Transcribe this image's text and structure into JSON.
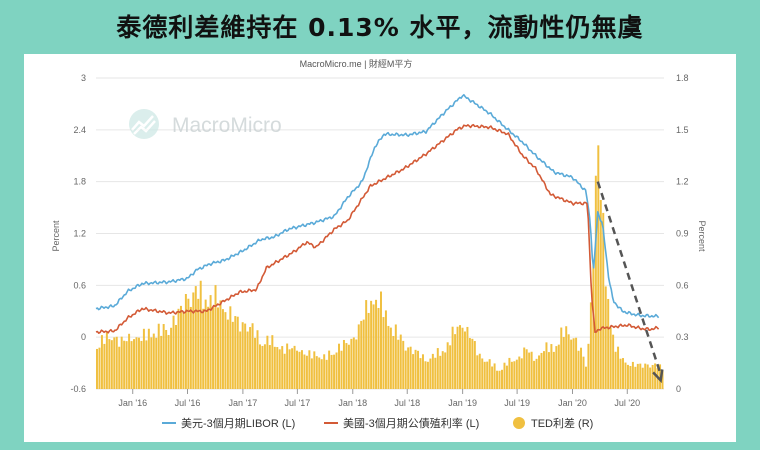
{
  "banner": {
    "title": "泰德利差維持在 0.13% 水平，流動性仍無虞"
  },
  "source": "MacroMicro.me | 財經M平方",
  "watermark": "MacroMicro",
  "colors": {
    "libor": "#5aaad8",
    "treasury": "#d35a36",
    "ted": "#f0c040",
    "arrow": "#555555",
    "background": "#7fd3c1"
  },
  "icons": [
    "macromicro-logo-icon",
    "dashed-arrow-icon"
  ],
  "chart_data": {
    "type": "line",
    "x_range": [
      "2015-09-01",
      "2020-10-31"
    ],
    "x_ticks": [
      {
        "label": "Jan '16",
        "date": "2016-01-01"
      },
      {
        "label": "Jul '16",
        "date": "2016-07-01"
      },
      {
        "label": "Jan '17",
        "date": "2017-01-01"
      },
      {
        "label": "Jul '17",
        "date": "2017-07-01"
      },
      {
        "label": "Jan '18",
        "date": "2018-01-01"
      },
      {
        "label": "Jul '18",
        "date": "2018-07-01"
      },
      {
        "label": "Jan '19",
        "date": "2019-01-01"
      },
      {
        "label": "Jul '19",
        "date": "2019-07-01"
      },
      {
        "label": "Jan '20",
        "date": "2020-01-01"
      },
      {
        "label": "Jul '20",
        "date": "2020-07-01"
      }
    ],
    "y_left": {
      "label": "Percent",
      "range": [
        -0.6,
        3
      ],
      "ticks": [
        "-0.6",
        "0",
        "0.6",
        "1.2",
        "1.8",
        "2.4",
        "3"
      ]
    },
    "y_right": {
      "label": "Percent",
      "range": [
        0,
        1.8
      ],
      "ticks": [
        "0",
        "0.3",
        "0.6",
        "0.9",
        "1.2",
        "1.5",
        "1.8"
      ]
    },
    "grid": "horizontal",
    "legend_position": "bottom",
    "series": [
      {
        "name": "美元-3個月期LIBOR (L)",
        "axis": "left",
        "type": "line",
        "points": [
          [
            "2015-09-01",
            0.33
          ],
          [
            "2015-11-01",
            0.36
          ],
          [
            "2015-12-15",
            0.53
          ],
          [
            "2016-02-01",
            0.62
          ],
          [
            "2016-05-01",
            0.64
          ],
          [
            "2016-07-01",
            0.68
          ],
          [
            "2016-08-01",
            0.78
          ],
          [
            "2016-09-15",
            0.85
          ],
          [
            "2016-11-01",
            0.89
          ],
          [
            "2017-01-01",
            1.0
          ],
          [
            "2017-03-01",
            1.13
          ],
          [
            "2017-04-15",
            1.16
          ],
          [
            "2017-06-01",
            1.25
          ],
          [
            "2017-09-01",
            1.33
          ],
          [
            "2017-11-01",
            1.4
          ],
          [
            "2017-12-15",
            1.62
          ],
          [
            "2018-02-01",
            1.8
          ],
          [
            "2018-03-15",
            2.2
          ],
          [
            "2018-04-15",
            2.35
          ],
          [
            "2018-07-01",
            2.34
          ],
          [
            "2018-09-01",
            2.38
          ],
          [
            "2018-11-01",
            2.6
          ],
          [
            "2019-01-01",
            2.8
          ],
          [
            "2019-02-01",
            2.73
          ],
          [
            "2019-04-01",
            2.59
          ],
          [
            "2019-06-01",
            2.4
          ],
          [
            "2019-07-15",
            2.27
          ],
          [
            "2019-09-01",
            2.1
          ],
          [
            "2019-11-01",
            1.91
          ],
          [
            "2020-01-01",
            1.85
          ],
          [
            "2020-02-15",
            1.69
          ],
          [
            "2020-03-01",
            1.3
          ],
          [
            "2020-03-10",
            0.72
          ],
          [
            "2020-03-25",
            1.45
          ],
          [
            "2020-04-10",
            1.3
          ],
          [
            "2020-04-30",
            0.7
          ],
          [
            "2020-05-15",
            0.42
          ],
          [
            "2020-06-15",
            0.3
          ],
          [
            "2020-07-15",
            0.27
          ],
          [
            "2020-08-15",
            0.25
          ],
          [
            "2020-10-15",
            0.24
          ]
        ]
      },
      {
        "name": "美國-3個月期公債殖利率 (L)",
        "axis": "left",
        "type": "line",
        "points": [
          [
            "2015-09-01",
            0.06
          ],
          [
            "2015-11-01",
            0.07
          ],
          [
            "2015-12-15",
            0.22
          ],
          [
            "2016-02-01",
            0.33
          ],
          [
            "2016-05-01",
            0.28
          ],
          [
            "2016-07-01",
            0.3
          ],
          [
            "2016-09-01",
            0.3
          ],
          [
            "2016-11-01",
            0.42
          ],
          [
            "2016-12-20",
            0.52
          ],
          [
            "2017-02-15",
            0.55
          ],
          [
            "2017-03-20",
            0.8
          ],
          [
            "2017-06-20",
            0.99
          ],
          [
            "2017-08-01",
            1.1
          ],
          [
            "2017-09-01",
            1.04
          ],
          [
            "2017-11-01",
            1.25
          ],
          [
            "2017-12-15",
            1.35
          ],
          [
            "2018-03-01",
            1.75
          ],
          [
            "2018-06-20",
            1.95
          ],
          [
            "2018-09-01",
            2.12
          ],
          [
            "2018-12-20",
            2.42
          ],
          [
            "2019-01-15",
            2.45
          ],
          [
            "2019-04-01",
            2.43
          ],
          [
            "2019-06-01",
            2.35
          ],
          [
            "2019-07-20",
            2.1
          ],
          [
            "2019-09-01",
            1.95
          ],
          [
            "2019-10-20",
            1.65
          ],
          [
            "2020-01-01",
            1.55
          ],
          [
            "2020-02-20",
            1.55
          ],
          [
            "2020-03-05",
            0.45
          ],
          [
            "2020-03-16",
            0.05
          ],
          [
            "2020-04-01",
            0.1
          ],
          [
            "2020-05-15",
            0.12
          ],
          [
            "2020-07-01",
            0.14
          ],
          [
            "2020-08-15",
            0.1
          ],
          [
            "2020-09-15",
            0.09
          ],
          [
            "2020-10-15",
            0.11
          ]
        ]
      },
      {
        "name": "TED利差 (R)",
        "axis": "right",
        "type": "bar",
        "points": [
          [
            "2015-09-01",
            0.28
          ],
          [
            "2015-10-01",
            0.3
          ],
          [
            "2015-11-01",
            0.32
          ],
          [
            "2015-12-01",
            0.28
          ],
          [
            "2016-01-01",
            0.32
          ],
          [
            "2016-02-01",
            0.3
          ],
          [
            "2016-03-01",
            0.36
          ],
          [
            "2016-04-01",
            0.34
          ],
          [
            "2016-05-01",
            0.38
          ],
          [
            "2016-06-01",
            0.44
          ],
          [
            "2016-07-01",
            0.56
          ],
          [
            "2016-08-01",
            0.58
          ],
          [
            "2016-09-01",
            0.56
          ],
          [
            "2016-10-01",
            0.54
          ],
          [
            "2016-11-01",
            0.5
          ],
          [
            "2016-12-01",
            0.42
          ],
          [
            "2017-01-01",
            0.4
          ],
          [
            "2017-02-01",
            0.36
          ],
          [
            "2017-03-01",
            0.3
          ],
          [
            "2017-04-01",
            0.29
          ],
          [
            "2017-05-01",
            0.26
          ],
          [
            "2017-06-01",
            0.24
          ],
          [
            "2017-07-01",
            0.25
          ],
          [
            "2017-08-01",
            0.2
          ],
          [
            "2017-09-01",
            0.22
          ],
          [
            "2017-10-01",
            0.18
          ],
          [
            "2017-11-01",
            0.24
          ],
          [
            "2017-12-01",
            0.26
          ],
          [
            "2018-01-01",
            0.3
          ],
          [
            "2018-02-01",
            0.4
          ],
          [
            "2018-03-01",
            0.55
          ],
          [
            "2018-04-01",
            0.52
          ],
          [
            "2018-05-01",
            0.42
          ],
          [
            "2018-06-01",
            0.32
          ],
          [
            "2018-07-01",
            0.26
          ],
          [
            "2018-08-01",
            0.22
          ],
          [
            "2018-09-01",
            0.18
          ],
          [
            "2018-10-01",
            0.2
          ],
          [
            "2018-11-01",
            0.24
          ],
          [
            "2018-12-01",
            0.33
          ],
          [
            "2019-01-01",
            0.4
          ],
          [
            "2019-02-01",
            0.3
          ],
          [
            "2019-03-01",
            0.2
          ],
          [
            "2019-04-01",
            0.16
          ],
          [
            "2019-05-01",
            0.12
          ],
          [
            "2019-06-01",
            0.16
          ],
          [
            "2019-07-01",
            0.18
          ],
          [
            "2019-08-01",
            0.24
          ],
          [
            "2019-09-01",
            0.18
          ],
          [
            "2019-10-01",
            0.24
          ],
          [
            "2019-11-01",
            0.26
          ],
          [
            "2019-12-01",
            0.34
          ],
          [
            "2020-01-01",
            0.34
          ],
          [
            "2020-02-01",
            0.22
          ],
          [
            "2020-02-20",
            0.12
          ],
          [
            "2020-03-10",
            0.8
          ],
          [
            "2020-03-20",
            1.3
          ],
          [
            "2020-03-30",
            1.42
          ],
          [
            "2020-04-10",
            1.0
          ],
          [
            "2020-04-25",
            0.62
          ],
          [
            "2020-05-10",
            0.38
          ],
          [
            "2020-05-25",
            0.24
          ],
          [
            "2020-06-15",
            0.18
          ],
          [
            "2020-07-01",
            0.16
          ],
          [
            "2020-08-01",
            0.14
          ],
          [
            "2020-09-01",
            0.15
          ],
          [
            "2020-10-01",
            0.14
          ],
          [
            "2020-10-25",
            0.13
          ]
        ]
      }
    ],
    "annotations": [
      {
        "type": "arrow",
        "style": "dashed",
        "from": [
          "2020-03-25",
          1.2
        ],
        "to": [
          "2020-10-20",
          0.05
        ],
        "axis": "right"
      }
    ]
  }
}
